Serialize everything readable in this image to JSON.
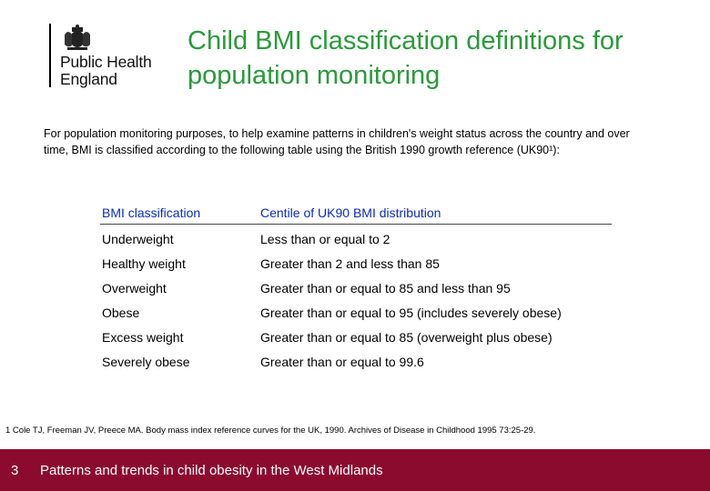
{
  "logo": {
    "org_line1": "Public Health",
    "org_line2": "England"
  },
  "title": "Child BMI classification definitions for population monitoring",
  "intro": "For population monitoring purposes, to help examine patterns in children's weight status across the country and over time, BMI is classified according to the following table using the British 1990 growth reference (UK90¹):",
  "table": {
    "headers": [
      "BMI classification",
      "Centile of UK90 BMI distribution"
    ],
    "rows": [
      [
        "Underweight",
        "Less than or equal to 2"
      ],
      [
        "Healthy weight",
        "Greater than 2 and less than 85"
      ],
      [
        "Overweight",
        "Greater than or equal to 85 and less than 95"
      ],
      [
        "Obese",
        "Greater than or equal to 95 (includes severely obese)"
      ],
      [
        "Excess weight",
        "Greater than or equal to 85 (overweight plus obese)"
      ],
      [
        "Severely obese",
        "Greater than or equal to 99.6"
      ]
    ]
  },
  "footnote": "1 Cole TJ, Freeman JV, Preece MA. Body mass index reference curves for the UK, 1990. Archives of Disease in Childhood 1995 73:25-29.",
  "footer": {
    "page_number": "3",
    "text": "Patterns and trends in child obesity in the West Midlands"
  },
  "colors": {
    "title": "#2a9a3a",
    "header": "#0b2ac0",
    "footer_bg": "#8b0b2f"
  },
  "icons": {
    "logo_crest": "royal-crest-icon"
  }
}
